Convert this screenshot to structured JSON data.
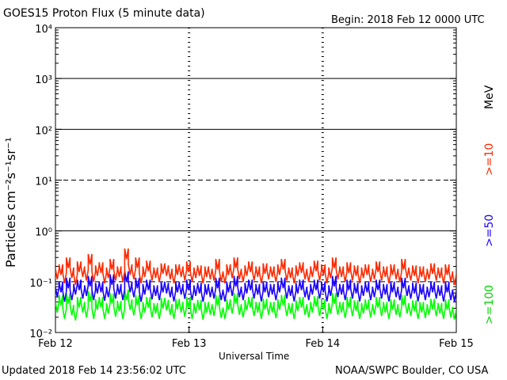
{
  "header": {
    "title": "GOES15 Proton Flux (5 minute data)",
    "begin": "Begin: 2018 Feb 12 0000 UTC"
  },
  "footer": {
    "updated": "Updated 2018 Feb 14 23:56:02 UTC",
    "credit": "NOAA/SWPC Boulder, CO USA"
  },
  "axes": {
    "ylabel": "Particles cm⁻²s⁻¹sr⁻¹",
    "xlabel": "Universal Time",
    "unit_label": "MeV"
  },
  "colors": {
    "p10": "#ff2a00",
    "p50": "#1a00ff",
    "p100": "#00ff00",
    "frame": "#000000"
  },
  "chart_data": {
    "type": "line",
    "title": "GOES15 Proton Flux (5 minute data)",
    "xlabel": "Universal Time",
    "ylabel": "Particles cm⁻²s⁻¹sr⁻¹",
    "x_tick_labels": [
      "Feb 12",
      "Feb 13",
      "Feb 14",
      "Feb 15"
    ],
    "y_scale": "log",
    "y_tick_labels": [
      "10⁻²",
      "10⁻¹",
      "10⁰",
      "10¹",
      "10²",
      "10³",
      "10⁴"
    ],
    "ylim": [
      0.01,
      10000
    ],
    "xlim": [
      "2018-02-12 00:00",
      "2018-02-15 00:00"
    ],
    "grid": "solid lines at 10^0, 10^2, 10^3; dashed line at 10^1 and 10^-1",
    "series": [
      {
        "name": ">=10",
        "color": "#ff2a00",
        "x_start": "2018-02-12 00:00",
        "x_end": "2018-02-15 00:00",
        "values": [
          0.18,
          0.22,
          0.15,
          0.3,
          0.19,
          0.14,
          0.25,
          0.2,
          0.17,
          0.35,
          0.16,
          0.21,
          0.24,
          0.15,
          0.19,
          0.28,
          0.17,
          0.2,
          0.16,
          0.45,
          0.22,
          0.18,
          0.3,
          0.15,
          0.2,
          0.26,
          0.17,
          0.19,
          0.16,
          0.23,
          0.21,
          0.18,
          0.15,
          0.22,
          0.2,
          0.17,
          0.25,
          0.16,
          0.19,
          0.21,
          0.15,
          0.2,
          0.18,
          0.17,
          0.28,
          0.16,
          0.15,
          0.22,
          0.19,
          0.3,
          0.18,
          0.16,
          0.21,
          0.25,
          0.17,
          0.2,
          0.15,
          0.23,
          0.18,
          0.2,
          0.16,
          0.22,
          0.28,
          0.17,
          0.19,
          0.15,
          0.21,
          0.24,
          0.18,
          0.16,
          0.2,
          0.26,
          0.17,
          0.22,
          0.15,
          0.19,
          0.3,
          0.18,
          0.2,
          0.16,
          0.24,
          0.17,
          0.21,
          0.15,
          0.19,
          0.22,
          0.16,
          0.18,
          0.25,
          0.17,
          0.2,
          0.15,
          0.22,
          0.18,
          0.16,
          0.28,
          0.19,
          0.17,
          0.21,
          0.15,
          0.2,
          0.16,
          0.18,
          0.23,
          0.17,
          0.19,
          0.15,
          0.22,
          0.16,
          0.14
        ]
      },
      {
        "name": ">=50",
        "color": "#1a00ff",
        "x_start": "2018-02-12 00:00",
        "x_end": "2018-02-15 00:00",
        "values": [
          0.08,
          0.1,
          0.065,
          0.12,
          0.07,
          0.09,
          0.11,
          0.075,
          0.085,
          0.13,
          0.07,
          0.095,
          0.1,
          0.068,
          0.08,
          0.14,
          0.075,
          0.09,
          0.07,
          0.16,
          0.1,
          0.08,
          0.12,
          0.065,
          0.09,
          0.11,
          0.072,
          0.085,
          0.07,
          0.1,
          0.095,
          0.08,
          0.066,
          0.1,
          0.09,
          0.074,
          0.11,
          0.07,
          0.085,
          0.095,
          0.065,
          0.09,
          0.08,
          0.075,
          0.12,
          0.07,
          0.066,
          0.1,
          0.085,
          0.13,
          0.08,
          0.07,
          0.095,
          0.11,
          0.075,
          0.09,
          0.066,
          0.1,
          0.08,
          0.09,
          0.07,
          0.1,
          0.12,
          0.075,
          0.085,
          0.066,
          0.095,
          0.11,
          0.08,
          0.07,
          0.09,
          0.11,
          0.075,
          0.1,
          0.066,
          0.085,
          0.13,
          0.08,
          0.09,
          0.07,
          0.11,
          0.075,
          0.095,
          0.066,
          0.085,
          0.1,
          0.07,
          0.08,
          0.11,
          0.075,
          0.09,
          0.066,
          0.1,
          0.08,
          0.07,
          0.12,
          0.085,
          0.075,
          0.095,
          0.066,
          0.09,
          0.07,
          0.08,
          0.1,
          0.075,
          0.085,
          0.066,
          0.1,
          0.07,
          0.065
        ]
      },
      {
        "name": ">=100",
        "color": "#00ff00",
        "x_start": "2018-02-12 00:00",
        "x_end": "2018-02-15 00:00",
        "values": [
          0.04,
          0.055,
          0.03,
          0.06,
          0.035,
          0.028,
          0.05,
          0.04,
          0.032,
          0.065,
          0.03,
          0.045,
          0.05,
          0.03,
          0.038,
          0.06,
          0.033,
          0.042,
          0.03,
          0.07,
          0.045,
          0.035,
          0.055,
          0.03,
          0.04,
          0.05,
          0.032,
          0.038,
          0.03,
          0.048,
          0.044,
          0.036,
          0.03,
          0.046,
          0.04,
          0.033,
          0.05,
          0.03,
          0.038,
          0.044,
          0.029,
          0.04,
          0.036,
          0.034,
          0.055,
          0.031,
          0.03,
          0.045,
          0.038,
          0.06,
          0.036,
          0.032,
          0.044,
          0.05,
          0.034,
          0.04,
          0.03,
          0.046,
          0.036,
          0.04,
          0.031,
          0.045,
          0.055,
          0.034,
          0.038,
          0.03,
          0.043,
          0.05,
          0.036,
          0.032,
          0.04,
          0.052,
          0.034,
          0.045,
          0.03,
          0.038,
          0.06,
          0.036,
          0.04,
          0.031,
          0.05,
          0.034,
          0.043,
          0.03,
          0.038,
          0.045,
          0.032,
          0.036,
          0.05,
          0.034,
          0.04,
          0.03,
          0.045,
          0.036,
          0.032,
          0.055,
          0.038,
          0.034,
          0.043,
          0.03,
          0.04,
          0.031,
          0.036,
          0.046,
          0.034,
          0.038,
          0.03,
          0.045,
          0.032,
          0.029
        ]
      }
    ]
  }
}
